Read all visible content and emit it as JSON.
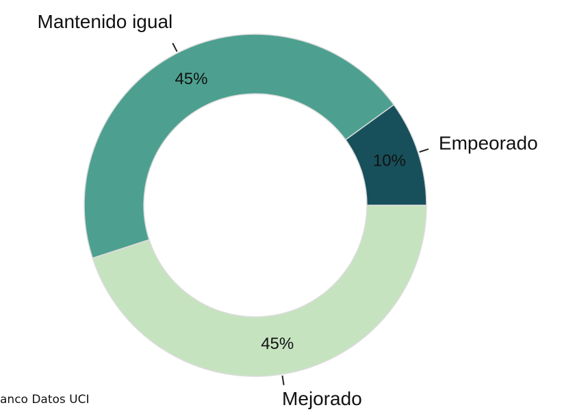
{
  "chart_data": {
    "type": "donut",
    "categories": [
      "Empeorado",
      "Mantenido igual",
      "Mejorado"
    ],
    "values": [
      10,
      45,
      45
    ],
    "value_labels": [
      "10%",
      "45%",
      "45%"
    ],
    "colors": [
      "#17505b",
      "#4da08f",
      "#c6e3c0"
    ]
  },
  "footer": "anco Datos UCI"
}
